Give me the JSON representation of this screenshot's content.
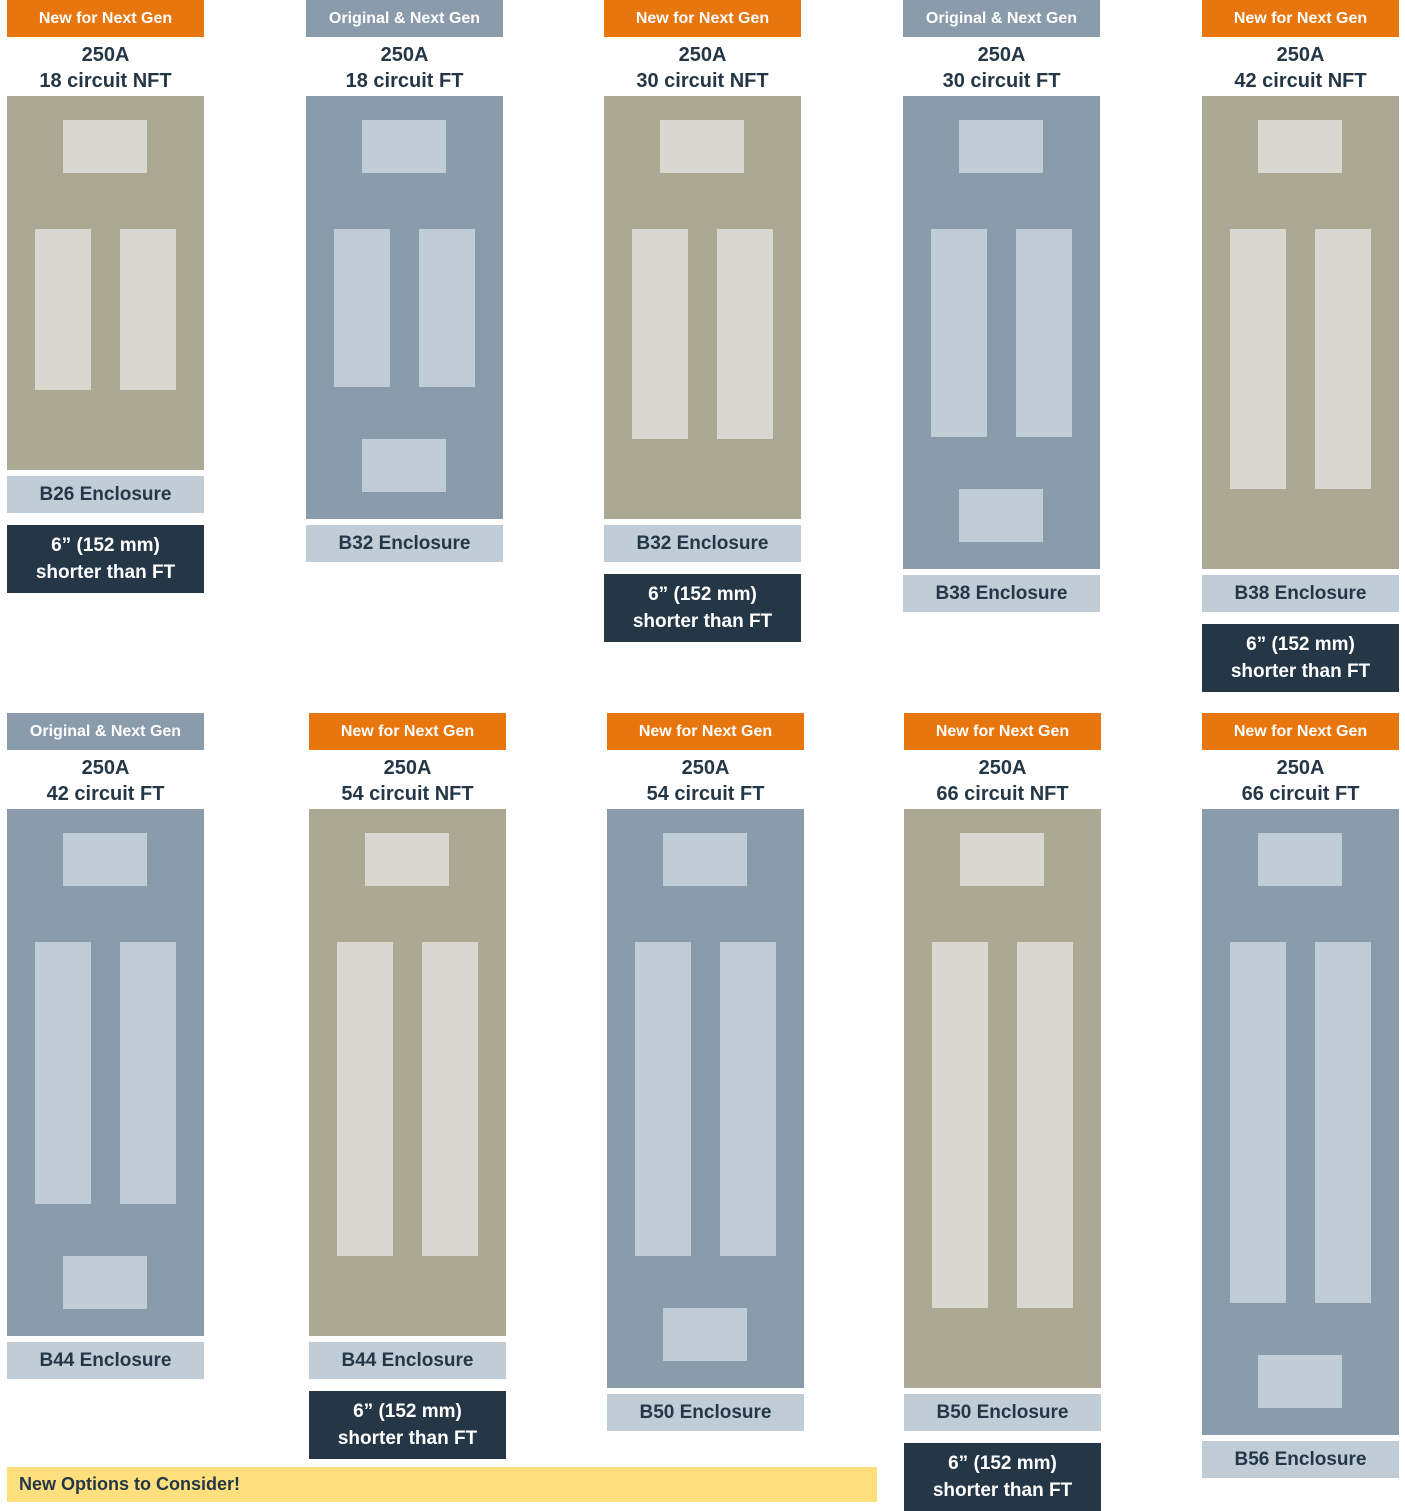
{
  "panels": [
    {
      "badge": "New for Next Gen",
      "amps": "250A",
      "circuits": "18 circuit NFT",
      "enclosure": "B26 Enclosure",
      "note": [
        "6” (152 mm)",
        "shorter than FT"
      ]
    },
    {
      "badge": "Original & Next Gen",
      "amps": "250A",
      "circuits": "18 circuit FT",
      "enclosure": "B32 Enclosure"
    },
    {
      "badge": "New for Next Gen",
      "amps": "250A",
      "circuits": "30 circuit NFT",
      "enclosure": "B32 Enclosure",
      "note": [
        "6” (152 mm)",
        "shorter than FT"
      ]
    },
    {
      "badge": "Original & Next Gen",
      "amps": "250A",
      "circuits": "30 circuit FT",
      "enclosure": "B38 Enclosure"
    },
    {
      "badge": "New for Next Gen",
      "amps": "250A",
      "circuits": "42 circuit NFT",
      "enclosure": "B38 Enclosure",
      "note": [
        "6” (152 mm)",
        "shorter than FT"
      ]
    },
    {
      "badge": "Original & Next Gen",
      "amps": "250A",
      "circuits": "42 circuit FT",
      "enclosure": "B44 Enclosure"
    },
    {
      "badge": "New for Next Gen",
      "amps": "250A",
      "circuits": "54 circuit NFT",
      "enclosure": "B44 Enclosure",
      "note": [
        "6” (152 mm)",
        "shorter than FT"
      ]
    },
    {
      "badge": "New for Next Gen",
      "amps": "250A",
      "circuits": "54 circuit FT",
      "enclosure": "B50 Enclosure"
    },
    {
      "badge": "New for Next Gen",
      "amps": "250A",
      "circuits": "66 circuit NFT",
      "enclosure": "B50 Enclosure",
      "note": [
        "6” (152 mm)",
        "shorter than FT"
      ]
    },
    {
      "badge": "New for Next Gen",
      "amps": "250A",
      "circuits": "66 circuit FT",
      "enclosure": "B56 Enclosure"
    }
  ],
  "footer": "New Options to Consider!"
}
